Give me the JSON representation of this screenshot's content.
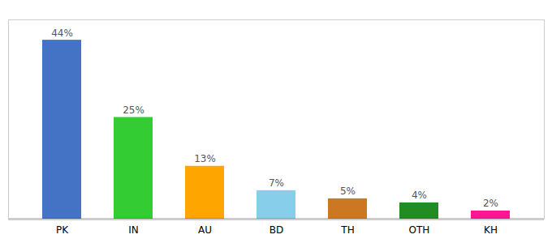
{
  "chart_data": {
    "type": "bar",
    "categories": [
      "PK",
      "IN",
      "AU",
      "BD",
      "TH",
      "OTH",
      "KH"
    ],
    "values": [
      44,
      25,
      13,
      7,
      5,
      4,
      2
    ],
    "value_labels": [
      "44%",
      "25%",
      "13%",
      "7%",
      "5%",
      "4%",
      "2%"
    ],
    "colors": [
      "#4472C4",
      "#33CC33",
      "#FFA500",
      "#87CEEB",
      "#CC7722",
      "#228B22",
      "#FF1493"
    ],
    "ylim": [
      0,
      49
    ],
    "data_labels": true,
    "tick_labels": "x"
  }
}
